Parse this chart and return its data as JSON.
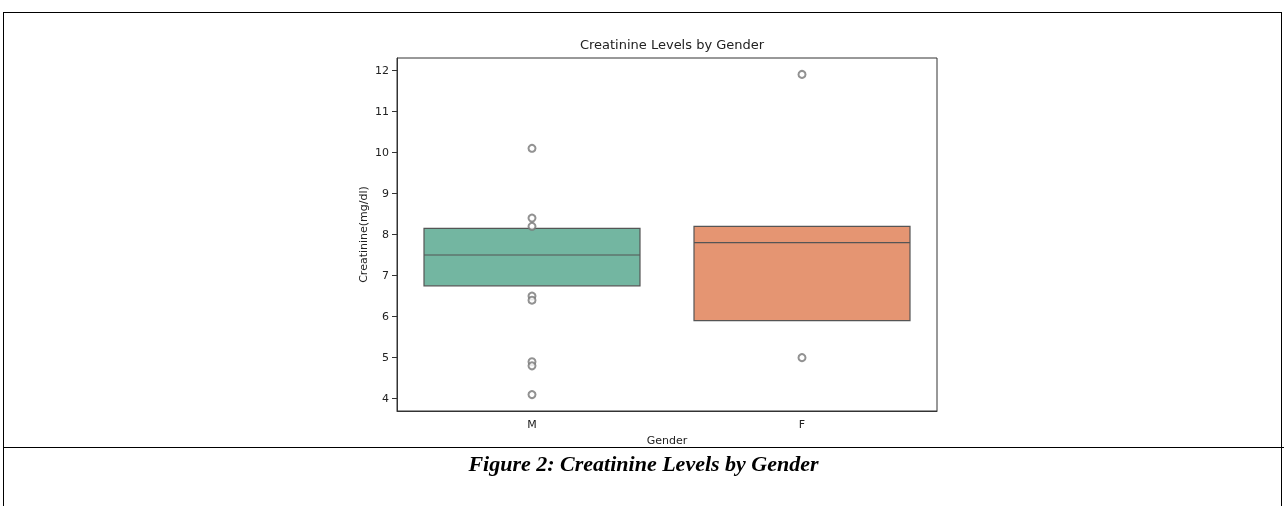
{
  "chart_data": {
    "type": "box",
    "title": "Creatinine Levels by Gender",
    "xlabel": "Gender",
    "ylabel": "Creatinine(mg/dl)",
    "categories": [
      "M",
      "F"
    ],
    "colors": [
      "#73b6a1",
      "#e59572"
    ],
    "boxes": [
      {
        "low": 6.75,
        "q1": 6.75,
        "median": 7.5,
        "q3": 8.15,
        "high": 8.15,
        "outliers": [
          10.1,
          8.4,
          8.2,
          6.5,
          6.4,
          4.9,
          4.8,
          4.1
        ]
      },
      {
        "low": 5.9,
        "q1": 5.9,
        "median": 7.8,
        "q3": 8.2,
        "high": 8.2,
        "outliers": [
          11.9,
          5.0
        ]
      }
    ],
    "ylim": [
      3.7,
      12.3
    ],
    "yticks": [
      4,
      5,
      6,
      7,
      8,
      9,
      10,
      11,
      12
    ],
    "grid": false,
    "marker": "circle",
    "annotations": [
      "Figure 2: Creatinine Levels by Gender"
    ]
  }
}
